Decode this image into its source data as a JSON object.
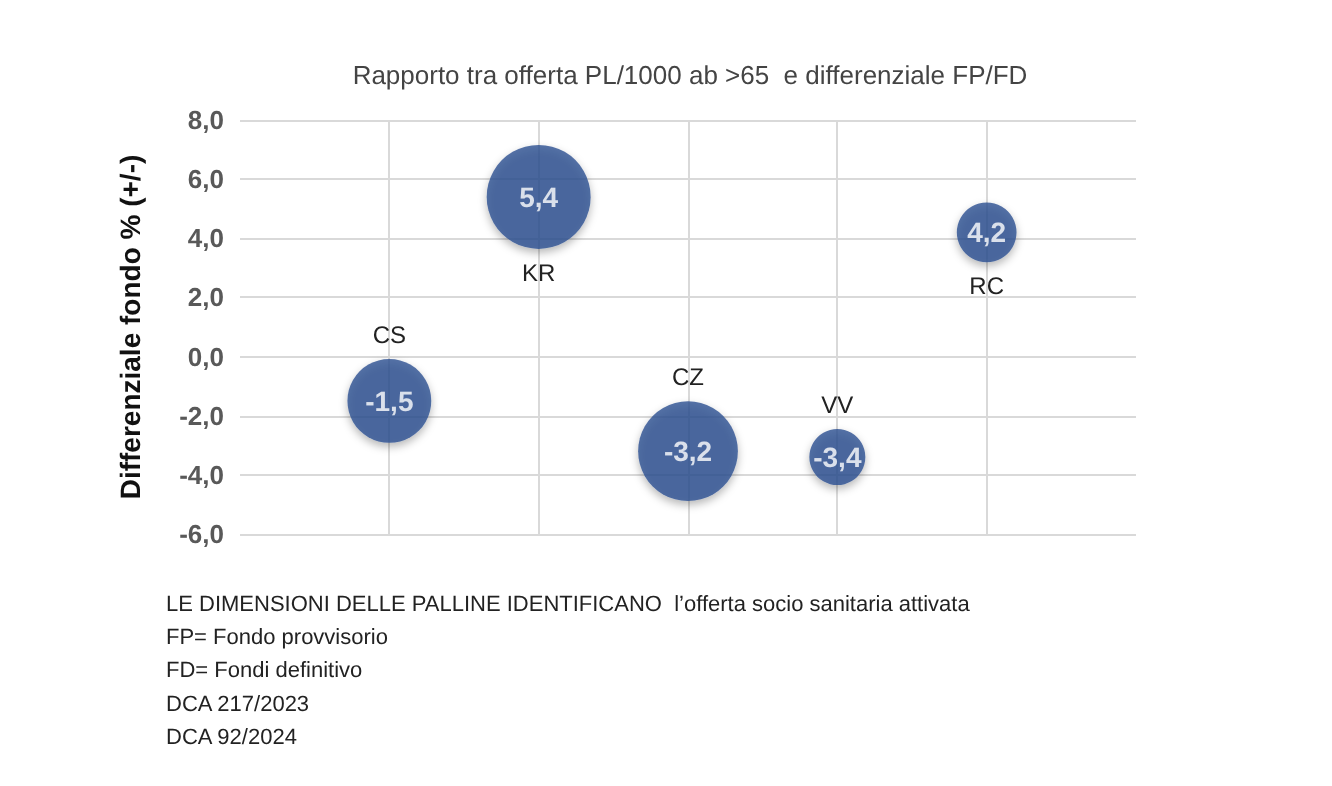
{
  "chart_data": {
    "type": "bubble",
    "title": "Rapporto tra offerta PL/1000 ab >65  e differenziale FP/FD",
    "ylabel": "Differenziale fondo % (+/-)",
    "annotations": [
      "LE DIMENSIONI DELLE PALLINE IDENTIFICANO  l’offerta socio sanitaria attivata",
      "FP= Fondo provvisorio",
      "FD= Fondi definitivo",
      "DCA 217/2023",
      "DCA 92/2024"
    ],
    "categories": [
      null,
      null,
      null,
      null,
      null
    ],
    "ylim": [
      -6,
      8
    ],
    "yticks": [
      {
        "value": -6,
        "label": "-6,0"
      },
      {
        "value": -4,
        "label": "-4,0"
      },
      {
        "value": -2,
        "label": "-2,0"
      },
      {
        "value": 0,
        "label": "0,0"
      },
      {
        "value": 2,
        "label": "2,0"
      },
      {
        "value": 4,
        "label": "4,0"
      },
      {
        "value": 6,
        "label": "6,0"
      },
      {
        "value": 8,
        "label": "8,0"
      }
    ],
    "tick_labels": "y",
    "grid": true,
    "legend": false,
    "marker": "circle",
    "series": [
      {
        "name": "CS",
        "color": "#2c4f90",
        "values": [
          -1.5,
          null,
          null,
          null,
          null
        ],
        "sizes": [
          0.65,
          null,
          null,
          null,
          null
        ],
        "value_labels": [
          "-1,5",
          null,
          null,
          null,
          null
        ]
      },
      {
        "name": "KR",
        "color": "#2c4f90",
        "values": [
          null,
          5.4,
          null,
          null,
          null
        ],
        "sizes": [
          null,
          1,
          null,
          null,
          null
        ],
        "value_labels": [
          null,
          "5,4",
          null,
          null,
          null
        ]
      },
      {
        "name": "CZ",
        "color": "#2c4f90",
        "values": [
          null,
          null,
          -3.2,
          null,
          null
        ],
        "sizes": [
          null,
          null,
          0.92,
          null,
          null
        ],
        "value_labels": [
          null,
          null,
          "-3,2",
          null,
          null
        ]
      },
      {
        "name": "VV",
        "color": "#2c4f90",
        "values": [
          null,
          null,
          null,
          -3.4,
          null
        ],
        "sizes": [
          null,
          null,
          null,
          0.29,
          null
        ],
        "value_labels": [
          null,
          null,
          null,
          "-3,4",
          null
        ]
      },
      {
        "name": "RC",
        "color": "#2c4f90",
        "values": [
          null,
          null,
          null,
          null,
          4.2
        ],
        "sizes": [
          null,
          null,
          null,
          null,
          0.33
        ],
        "value_labels": [
          null,
          null,
          null,
          null,
          "4,2"
        ]
      }
    ]
  }
}
